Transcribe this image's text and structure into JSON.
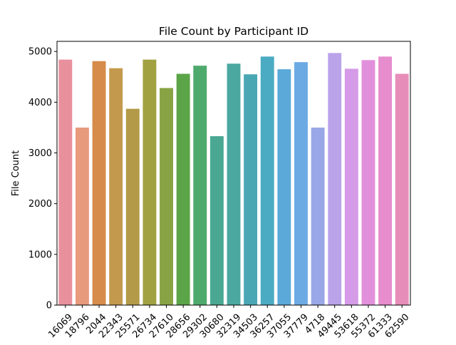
{
  "chart_data": {
    "type": "bar",
    "title": "File Count by Participant ID",
    "xlabel": "",
    "ylabel": "File Count",
    "ylim": [
      0,
      5200
    ],
    "yticks": [
      0,
      1000,
      2000,
      3000,
      4000,
      5000
    ],
    "grid": false,
    "legend": "none",
    "x_tick_rotation_deg": 45,
    "categories": [
      "16069",
      "18796",
      "2044",
      "22343",
      "25571",
      "26734",
      "27610",
      "28656",
      "29302",
      "30680",
      "32319",
      "34503",
      "36257",
      "37055",
      "37779",
      "4718",
      "49445",
      "53618",
      "55372",
      "61333",
      "62590"
    ],
    "values": [
      4840,
      3500,
      4810,
      4670,
      3870,
      4840,
      4280,
      4560,
      4720,
      3330,
      4760,
      4550,
      4900,
      4650,
      4790,
      3500,
      4970,
      4660,
      4830,
      4900,
      4560
    ],
    "colors": [
      "#e8919d",
      "#e89a7d",
      "#d68c4a",
      "#c39a4d",
      "#b29a48",
      "#a1a141",
      "#88a344",
      "#5ba548",
      "#4ea96c",
      "#4aa892",
      "#4aa8a1",
      "#49a7b4",
      "#4aabc2",
      "#5aa9d8",
      "#6caae4",
      "#9aa7e6",
      "#bba3ea",
      "#d59ae8",
      "#e290dc",
      "#e78ccd",
      "#e78dba"
    ]
  }
}
